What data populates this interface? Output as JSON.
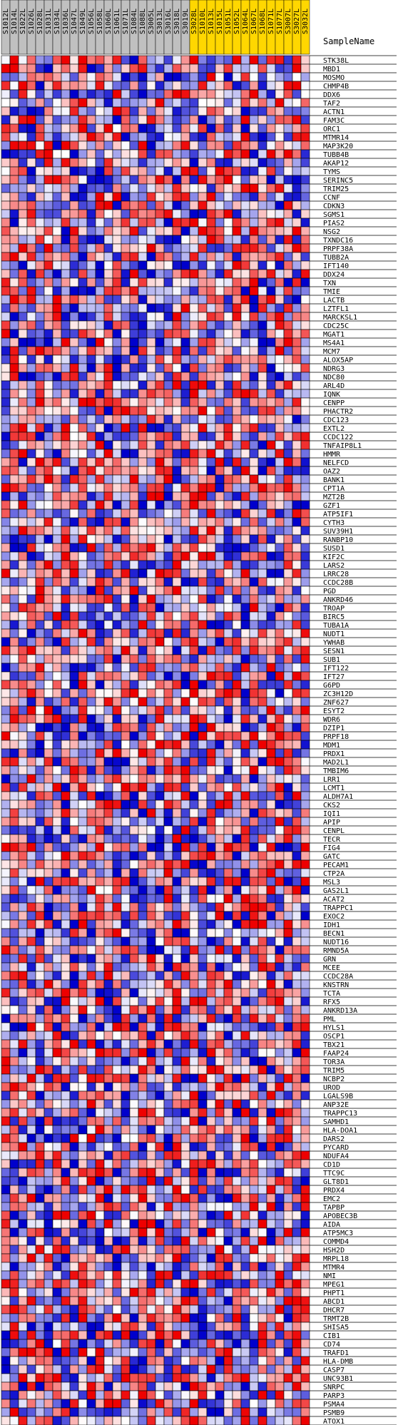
{
  "chart_data": {
    "type": "heatmap",
    "header_title": "SampleName",
    "samples": [
      "S1012L",
      "S1014L",
      "S1022L",
      "S1026L",
      "S1028L",
      "S1031L",
      "S1034L",
      "S1036L",
      "S1047L",
      "S1049L",
      "S1056L",
      "S1058L",
      "S1060L",
      "S1061L",
      "S1071L",
      "S1084L",
      "S1088L",
      "S3005L",
      "S3013L",
      "S3016L",
      "S3018L",
      "S3019L",
      "S3028L",
      "S1010L",
      "S1013L",
      "S1015L",
      "S1051L",
      "S1052L",
      "S1064L",
      "S1067L",
      "S1068L",
      "S1071L",
      "S1077L",
      "S3007L",
      "S3027L",
      "S3032L"
    ],
    "sample_groups": [
      "grey",
      "grey",
      "grey",
      "grey",
      "grey",
      "grey",
      "grey",
      "grey",
      "grey",
      "grey",
      "grey",
      "grey",
      "grey",
      "grey",
      "grey",
      "grey",
      "grey",
      "grey",
      "grey",
      "grey",
      "grey",
      "grey",
      "yellow",
      "yellow",
      "yellow",
      "yellow",
      "yellow",
      "yellow",
      "yellow",
      "yellow",
      "yellow",
      "yellow",
      "yellow",
      "yellow",
      "yellow",
      "yellow"
    ],
    "group_colors": {
      "grey": "#c0c0c0",
      "yellow": "#ffd700"
    },
    "genes": [
      "STK38L",
      "MBD1",
      "MOSMO",
      "CHMP4B",
      "DDX6",
      "TAF2",
      "ACTN1",
      "FAM3C",
      "ORC1",
      "MTMR14",
      "MAP3K20",
      "TUBB4B",
      "AKAP12",
      "TYMS",
      "SERINC5",
      "TRIM25",
      "CCNF",
      "CDKN3",
      "SGMS1",
      "PIAS2",
      "NSG2",
      "TXNDC16",
      "PRPF38A",
      "TUBB2A",
      "IFT140",
      "DDX24",
      "TXN",
      "TMIE",
      "LACTB",
      "LZTFL1",
      "MARCKSL1",
      "CDC25C",
      "MGAT1",
      "MS4A1",
      "MCM7",
      "ALOX5AP",
      "NDRG3",
      "NDC80",
      "ARL4D",
      "IQNK",
      "CENPP",
      "PHACTR2",
      "CDC123",
      "EXTL2",
      "CCDC122",
      "TNFAIP8L1",
      "HMMR",
      "NELFCD",
      "OAZ2",
      "BANK1",
      "CPT1A",
      "MZT2B",
      "GZF1",
      "ATP5IF1",
      "CYTH3",
      "SUV39H1",
      "RANBP10",
      "SUSD1",
      "KIF2C",
      "LARS2",
      "LRRC28",
      "CCDC28B",
      "PGD",
      "ANKRD46",
      "TROAP",
      "BIRC5",
      "TUBA1A",
      "NUDT1",
      "YWHAB",
      "SESN1",
      "SUB1",
      "IFT122",
      "IFT27",
      "G6PD",
      "ZC3H12D",
      "ZNF627",
      "ESYT2",
      "WDR6",
      "DZIP1",
      "PRPF18",
      "MDM1",
      "PRDX1",
      "MAD2L1",
      "TMBIM6",
      "LRR1",
      "LCMT1",
      "ALDH7A1",
      "CKS2",
      "IQI1",
      "APIP",
      "CENPL",
      "TECR",
      "FIG4",
      "GATC",
      "PECAM1",
      "CTP2A",
      "MSL3",
      "GAS2L1",
      "ACAT2",
      "TRAPPC1",
      "EXOC2",
      "IDH1",
      "BECN1",
      "NUDT16",
      "RMND5A",
      "GRN",
      "MCEE",
      "CCDC28A",
      "KNSTRN",
      "TCTA",
      "RFX5",
      "ANKRD13A",
      "PML",
      "HYLS1",
      "OSCP1",
      "TBX21",
      "FAAP24",
      "TOR3A",
      "TRIM5",
      "NCBP2",
      "UROD",
      "LGALS9B",
      "ANP32E",
      "TRAPPC13",
      "SAMHD1",
      "HLA-DOA1",
      "DARS2",
      "PYCARD",
      "NDUFA4",
      "CD1D",
      "TTC9C",
      "GLT8D1",
      "PRDX4",
      "EMC2",
      "TAPBP",
      "APOBEC3B",
      "AIDA",
      "ATP5MC3",
      "COMMD4",
      "HSH2D",
      "MRPL18",
      "MTMR4",
      "NMI",
      "MPEG1",
      "PHPT1",
      "ABCD1",
      "DHCR7",
      "TRMT2B",
      "SHISA5",
      "CIB1",
      "CD74",
      "TRAFD1",
      "HLA-DMB",
      "CASP7",
      "UNC93B1",
      "SNRPC",
      "PARP3",
      "PSMA4",
      "PSMB9",
      "ATOX1"
    ],
    "color_scale": {
      "low": "#0000cc",
      "mid": "#ffffff",
      "high": "#ee0000"
    },
    "value_range": [
      -2,
      2
    ],
    "grid": true
  }
}
